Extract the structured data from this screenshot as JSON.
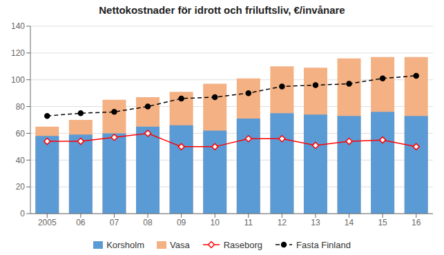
{
  "chart_data": {
    "type": "bar",
    "title": "Nettokostnader för idrott och friluftsliv, €/invånare",
    "categories": [
      "2005",
      "06",
      "07",
      "08",
      "09",
      "10",
      "11",
      "12",
      "13",
      "14",
      "15",
      "16"
    ],
    "series": [
      {
        "name": "Korsholm",
        "type": "bar",
        "color": "#5B9BD5",
        "values": [
          58,
          59,
          60,
          65,
          66,
          62,
          71,
          75,
          74,
          73,
          76,
          73
        ]
      },
      {
        "name": "Vasa",
        "type": "bar",
        "color": "#F4B183",
        "values": [
          65,
          70,
          85,
          87,
          91,
          97,
          101,
          110,
          109,
          116,
          117,
          117
        ]
      },
      {
        "name": "Raseborg",
        "type": "line",
        "color": "#FF0000",
        "marker": "diamond",
        "line_style": "solid",
        "values": [
          54,
          54,
          57,
          60,
          50,
          50,
          56,
          56,
          51,
          54,
          55,
          50
        ]
      },
      {
        "name": "Fasta Finland",
        "type": "line",
        "color": "#000000",
        "marker": "circle",
        "line_style": "dashed",
        "values": [
          73,
          75,
          76,
          80,
          86,
          87,
          90,
          95,
          96,
          97,
          101,
          103
        ]
      }
    ],
    "ylim": [
      0,
      140
    ],
    "yticks": [
      0,
      20,
      40,
      60,
      80,
      100,
      120,
      140
    ],
    "grid": true,
    "legend": "bottom"
  }
}
